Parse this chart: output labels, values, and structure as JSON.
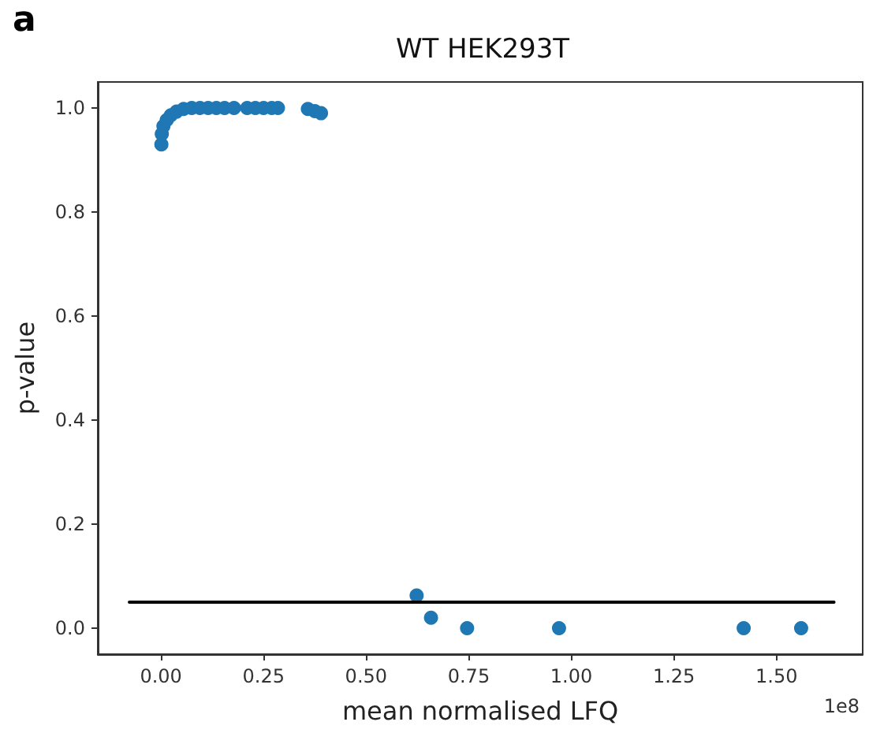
{
  "chart_data": {
    "type": "scatter",
    "title": "WT HEK293T",
    "xlabel": "mean normalised LFQ",
    "ylabel": "p-value",
    "annotations": [
      "a",
      "1e8"
    ],
    "x": [
      0.001,
      0.002,
      0.006,
      0.014,
      0.024,
      0.038,
      0.055,
      0.075,
      0.095,
      0.115,
      0.135,
      0.155,
      0.178,
      0.21,
      0.23,
      0.25,
      0.27,
      0.285,
      0.358,
      0.375,
      0.39,
      0.623,
      0.658,
      0.746,
      0.97,
      1.42,
      1.56
    ],
    "values": [
      0.93,
      0.95,
      0.965,
      0.977,
      0.986,
      0.993,
      0.998,
      1.0,
      1.0,
      1.0,
      1.0,
      1.0,
      1.0,
      1.0,
      1.0,
      1.0,
      1.0,
      1.0,
      0.998,
      0.994,
      0.99,
      0.063,
      0.02,
      0.0,
      0.0,
      0.0,
      0.0
    ],
    "color": "#1f77b4",
    "marker": "circle",
    "xlim": [
      -0.154,
      1.71
    ],
    "xticks": [
      {
        "value": 0,
        "label": "0.00"
      },
      {
        "value": 0.25,
        "label": "0.25"
      },
      {
        "value": 0.5,
        "label": "0.50"
      },
      {
        "value": 0.75,
        "label": "0.75"
      },
      {
        "value": 1,
        "label": "1.00"
      },
      {
        "value": 1.25,
        "label": "1.25"
      },
      {
        "value": 1.5,
        "label": "1.50"
      }
    ],
    "ylim": [
      -0.05,
      1.05
    ],
    "yticks": [
      {
        "value": 0,
        "label": "0.0"
      },
      {
        "value": 0.2,
        "label": "0.2"
      },
      {
        "value": 0.4,
        "label": "0.4"
      },
      {
        "value": 0.6,
        "label": "0.6"
      },
      {
        "value": 0.8,
        "label": "0.8"
      },
      {
        "value": 1,
        "label": "1.0"
      }
    ],
    "series": [
      {
        "type": "line",
        "x": [
          -0.077,
          1.64
        ],
        "values": [
          0.05,
          0.05
        ],
        "color": "#000000",
        "marker": "none"
      }
    ]
  }
}
